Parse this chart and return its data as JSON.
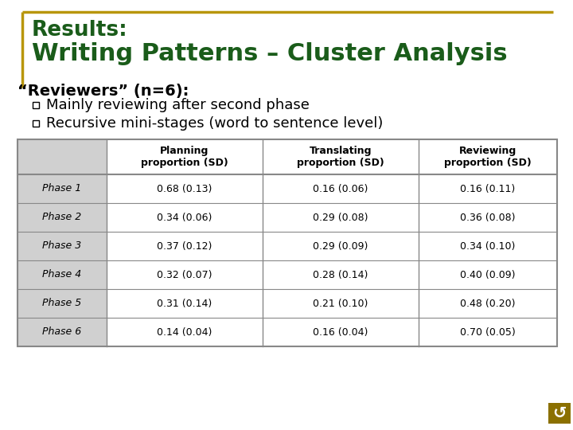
{
  "title_line1": "Results:",
  "title_line2": "Writing Patterns – Cluster Analysis",
  "title_color": "#1a5c1a",
  "background_color": "#ffffff",
  "subtitle": "“Reviewers” (n=6):",
  "bullets": [
    "Mainly reviewing after second phase",
    "Recursive mini-stages (word to sentence level)"
  ],
  "col_headers": [
    "",
    "Planning\nproportion (SD)",
    "Translating\nproportion (SD)",
    "Reviewing\nproportion (SD)"
  ],
  "rows": [
    [
      "Phase 1",
      "0.68 (0.13)",
      "0.16 (0.06)",
      "0.16 (0.11)"
    ],
    [
      "Phase 2",
      "0.34 (0.06)",
      "0.29 (0.08)",
      "0.36 (0.08)"
    ],
    [
      "Phase 3",
      "0.37 (0.12)",
      "0.29 (0.09)",
      "0.34 (0.10)"
    ],
    [
      "Phase 4",
      "0.32 (0.07)",
      "0.28 (0.14)",
      "0.40 (0.09)"
    ],
    [
      "Phase 5",
      "0.31 (0.14)",
      "0.21 (0.10)",
      "0.48 (0.20)"
    ],
    [
      "Phase 6",
      "0.14 (0.04)",
      "0.16 (0.04)",
      "0.70 (0.05)"
    ]
  ],
  "border_color": "#b8960c",
  "table_line_color": "#888888",
  "left_col_bg": "#d0d0d0",
  "icon_bg": "#8b7000",
  "icon_color": "#ffffff",
  "figwidth": 7.2,
  "figheight": 5.4,
  "dpi": 100
}
